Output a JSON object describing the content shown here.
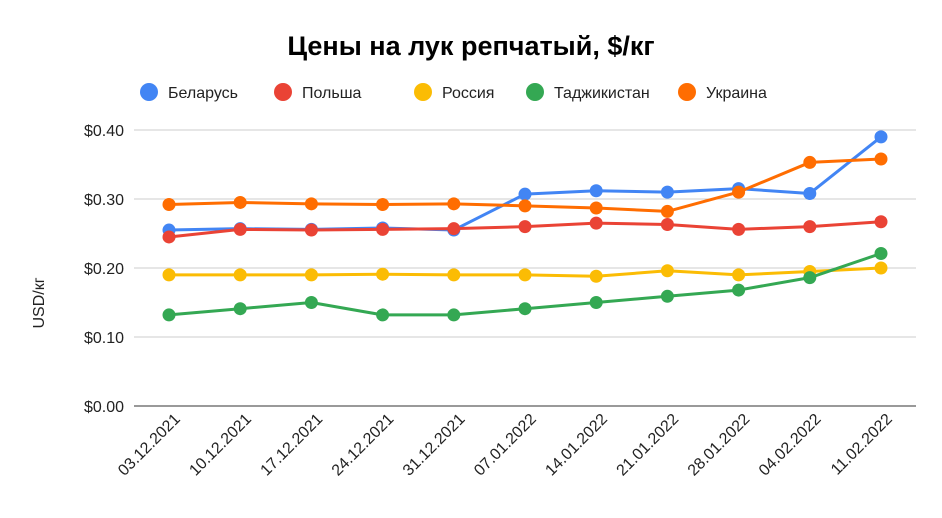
{
  "chart_data": {
    "type": "line",
    "title": "Цены на лук репчатый, $/кг",
    "xlabel": "",
    "ylabel": "USD/кг",
    "x": [
      "03.12.2021",
      "10.12.2021",
      "17.12.2021",
      "24.12.2021",
      "31.12.2021",
      "07.01.2022",
      "14.01.2022",
      "21.01.2022",
      "28.01.2022",
      "04.02.2022",
      "11.02.2022"
    ],
    "y_ticks": [
      "$0.00",
      "$0.10",
      "$0.20",
      "$0.30",
      "$0.40"
    ],
    "ylim": [
      0,
      0.4
    ],
    "grid": true,
    "legend_position": "top",
    "series": [
      {
        "name": "Беларусь",
        "color": "#4285f4",
        "values": [
          0.255,
          0.257,
          0.256,
          0.258,
          0.255,
          0.307,
          0.312,
          0.31,
          0.315,
          0.308,
          0.39
        ]
      },
      {
        "name": "Польша",
        "color": "#ea4335",
        "values": [
          0.245,
          0.256,
          0.255,
          0.256,
          0.257,
          0.26,
          0.265,
          0.263,
          0.256,
          0.26,
          0.267
        ]
      },
      {
        "name": "Россия",
        "color": "#fbbc04",
        "values": [
          0.19,
          0.19,
          0.19,
          0.191,
          0.19,
          0.19,
          0.188,
          0.196,
          0.19,
          0.195,
          0.2
        ]
      },
      {
        "name": "Таджикистан",
        "color": "#34a853",
        "values": [
          0.132,
          0.141,
          0.15,
          0.132,
          0.132,
          0.141,
          0.15,
          0.159,
          0.168,
          0.186,
          0.221
        ]
      },
      {
        "name": "Украина",
        "color": "#ff6d01",
        "values": [
          0.292,
          0.295,
          0.293,
          0.292,
          0.293,
          0.29,
          0.287,
          0.282,
          0.31,
          0.353,
          0.358
        ]
      }
    ]
  }
}
